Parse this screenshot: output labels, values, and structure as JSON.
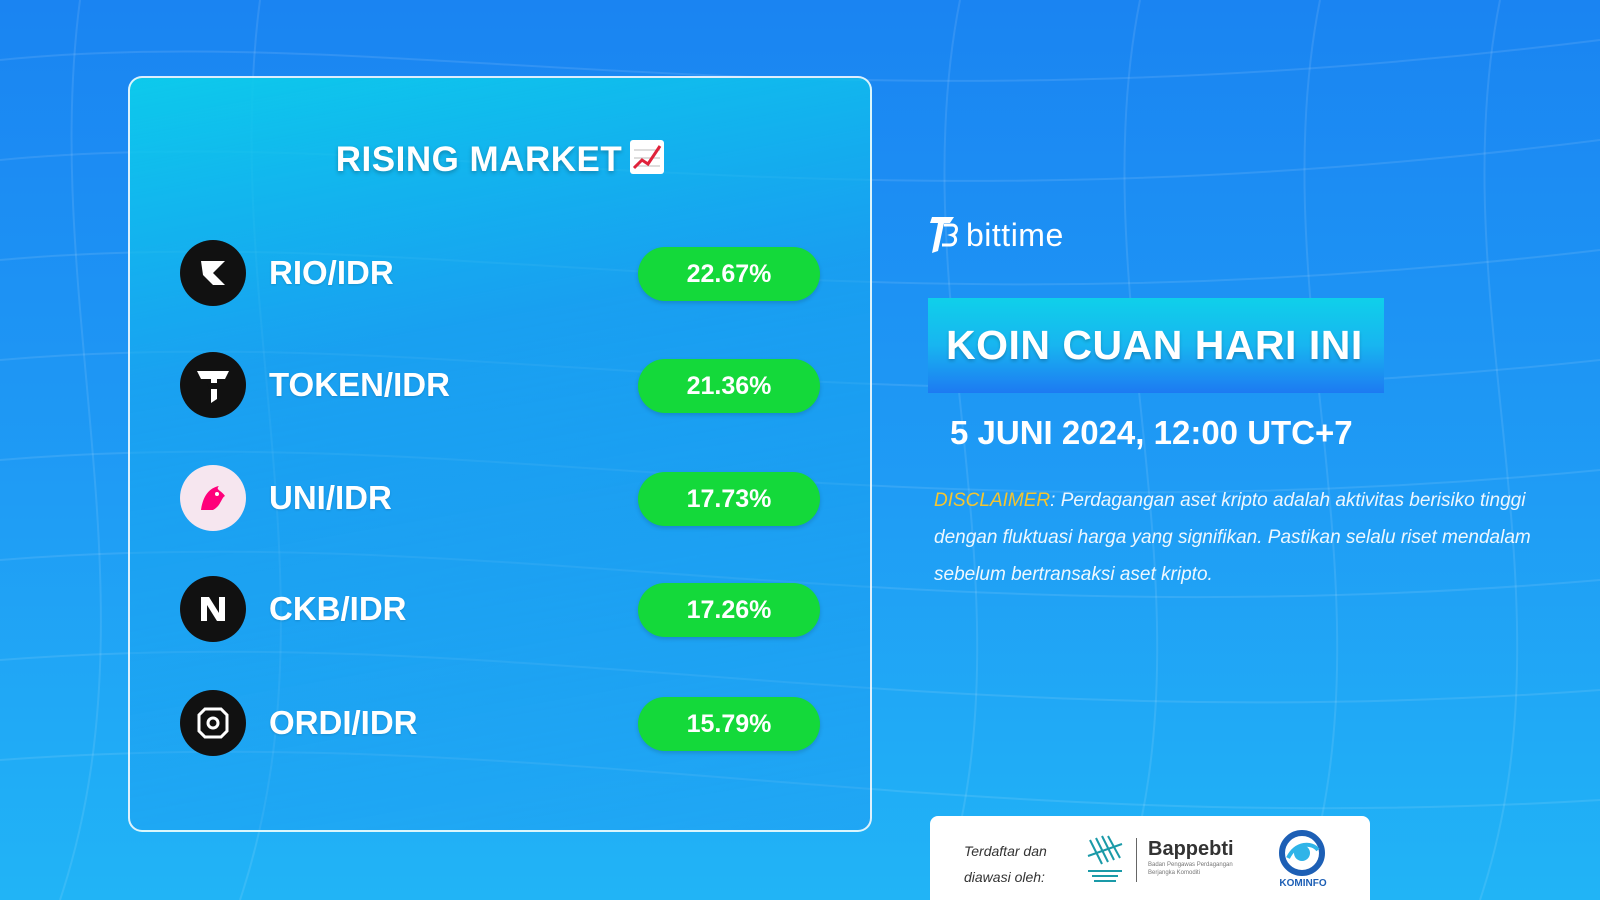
{
  "card": {
    "title": "RISING MARKET",
    "title_icon": "chart-increasing-icon",
    "items": [
      {
        "pair": "RIO/IDR",
        "change": "22.67%",
        "icon": "rio-icon"
      },
      {
        "pair": "TOKEN/IDR",
        "change": "21.36%",
        "icon": "tokenfi-icon"
      },
      {
        "pair": "UNI/IDR",
        "change": "17.73%",
        "icon": "uniswap-icon"
      },
      {
        "pair": "CKB/IDR",
        "change": "17.26%",
        "icon": "nervos-icon"
      },
      {
        "pair": "ORDI/IDR",
        "change": "15.79%",
        "icon": "ordi-icon"
      }
    ]
  },
  "brand": {
    "name": "bittime",
    "logo": "bittime-logo-icon"
  },
  "banner": {
    "title": "KOIN CUAN HARI INI"
  },
  "date": "5 JUNI 2024, 12:00 UTC+7",
  "disclaimer": {
    "label": "DISCLAIMER",
    "text": ": Perdagangan aset kripto adalah aktivitas berisiko tinggi dengan fluktuasi harga yang signifikan. Pastikan selalu riset mendalam sebelum bertransaksi aset kripto."
  },
  "footer": {
    "line1": "Terdaftar dan",
    "line2": "diawasi oleh:",
    "bappebti": "Bappebti",
    "bappebti_sub": "Badan Pengawas Perdagangan Berjangka Komoditi",
    "kominfo": "KOMINFO"
  },
  "colors": {
    "accent_green": "#14d93a",
    "disclaimer_label": "#f4c531",
    "background": "#1f9cf5"
  }
}
